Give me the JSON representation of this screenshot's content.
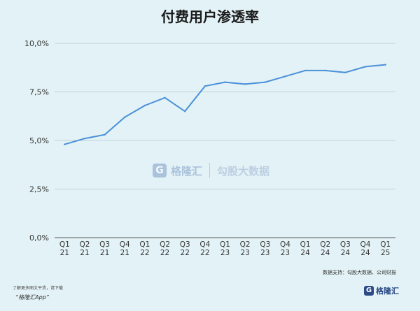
{
  "chart_data": {
    "type": "line",
    "title": "付费用户渗透率",
    "categories": [
      "Q1 21",
      "Q2 21",
      "Q3 21",
      "Q4 21",
      "Q1 22",
      "Q2 22",
      "Q3 22",
      "Q4 22",
      "Q1 23",
      "Q2 23",
      "Q3 23",
      "Q4 23",
      "Q1 24",
      "Q2 24",
      "Q3 24",
      "Q4 24",
      "Q1 25"
    ],
    "values": [
      4.8,
      5.1,
      5.3,
      6.2,
      6.8,
      7.2,
      6.5,
      7.8,
      8.0,
      7.9,
      8.0,
      8.3,
      8.6,
      8.6,
      8.5,
      8.8,
      8.9
    ],
    "y_ticks": [
      "0,0%",
      "2,5%",
      "5,0%",
      "7,5%",
      "10,0%"
    ],
    "ylim": [
      0,
      10
    ],
    "grid": true,
    "line_color": "#4a90d9"
  },
  "source": "数据支持：勾股大数据、公司财报",
  "watermark": {
    "brand": "格隆汇",
    "partner": "勾股大数据"
  },
  "footer": {
    "note": "了解更多图文干货，请下载",
    "app": "“格隆汇App”",
    "logo_text": "格隆汇"
  }
}
